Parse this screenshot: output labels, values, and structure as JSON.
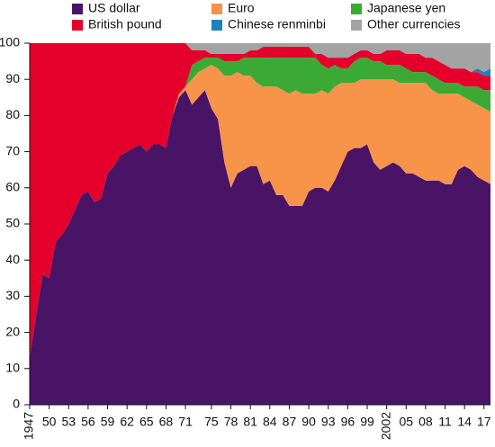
{
  "chart_data": {
    "type": "stacked_area",
    "x": [
      1947,
      1948,
      1949,
      1950,
      1951,
      1952,
      1953,
      1954,
      1955,
      1956,
      1957,
      1958,
      1959,
      1960,
      1961,
      1962,
      1963,
      1964,
      1965,
      1966,
      1967,
      1968,
      1969,
      1970,
      1971,
      1972,
      1973,
      1974,
      1975,
      1976,
      1977,
      1978,
      1979,
      1980,
      1981,
      1982,
      1983,
      1984,
      1985,
      1986,
      1987,
      1988,
      1989,
      1990,
      1991,
      1992,
      1993,
      1994,
      1995,
      1996,
      1997,
      1998,
      1999,
      2000,
      2001,
      2002,
      2003,
      2004,
      2005,
      2006,
      2007,
      2008,
      2009,
      2010,
      2011,
      2012,
      2013,
      2014,
      2015,
      2016,
      2017,
      2018
    ],
    "series": [
      {
        "name": "US dollar",
        "color": "#4a1466",
        "values": [
          13,
          25,
          36,
          35,
          45,
          47,
          50,
          54,
          58,
          59,
          56,
          57,
          64,
          66,
          69,
          70,
          71,
          72,
          70,
          72,
          72,
          71,
          80,
          85,
          87,
          83,
          85,
          87,
          82,
          79,
          67,
          60,
          64,
          65,
          66,
          66,
          61,
          62,
          58,
          58,
          55,
          55,
          55,
          59,
          60,
          60,
          59,
          62,
          66,
          70,
          71,
          71,
          72,
          67,
          65,
          66,
          67,
          66,
          64,
          64,
          63,
          62,
          62,
          62,
          61,
          61,
          65,
          66,
          65,
          63,
          62,
          61
        ]
      },
      {
        "name": "Euro",
        "color": "#f7944a",
        "values": [
          0,
          0,
          0,
          0,
          0,
          0,
          0,
          0,
          0,
          0,
          0,
          0,
          0,
          0,
          0,
          0,
          0,
          0,
          0,
          0,
          0,
          0,
          0,
          1,
          1,
          7,
          7,
          6,
          12,
          14,
          24,
          31,
          28,
          26,
          25,
          23,
          27,
          26,
          30,
          29,
          31,
          32,
          31,
          27,
          26,
          27,
          27,
          26,
          23,
          19,
          18,
          19,
          18,
          23,
          25,
          24,
          23,
          23,
          25,
          25,
          26,
          27,
          25,
          24,
          25,
          25,
          21,
          19,
          19,
          20,
          20,
          20
        ]
      },
      {
        "name": "Japanese yen",
        "color": "#3aaa35",
        "values": [
          0,
          0,
          0,
          0,
          0,
          0,
          0,
          0,
          0,
          0,
          0,
          0,
          0,
          0,
          0,
          0,
          0,
          0,
          0,
          0,
          0,
          0,
          0,
          0,
          0,
          4,
          3,
          3,
          2,
          3,
          4,
          4,
          3,
          5,
          5,
          7,
          8,
          8,
          8,
          9,
          10,
          9,
          10,
          10,
          10,
          7,
          7,
          6,
          4,
          4,
          6,
          6,
          6,
          5,
          5,
          4,
          4,
          5,
          4,
          3,
          3,
          3,
          4,
          4,
          3,
          3,
          3,
          3,
          4,
          5,
          5,
          6
        ]
      },
      {
        "name": "British pound",
        "color": "#e4002b",
        "values": [
          87,
          75,
          64,
          65,
          55,
          53,
          50,
          46,
          42,
          41,
          44,
          43,
          36,
          34,
          31,
          30,
          29,
          28,
          30,
          28,
          28,
          29,
          20,
          14,
          12,
          4,
          3,
          2,
          1,
          1,
          2,
          2,
          2,
          1,
          2,
          2,
          3,
          3,
          3,
          3,
          3,
          3,
          3,
          3,
          1,
          3,
          3,
          2,
          3,
          3,
          2,
          2,
          2,
          2,
          2,
          4,
          4,
          4,
          4,
          5,
          5,
          4,
          5,
          5,
          5,
          4,
          4,
          5,
          4,
          4,
          4,
          4
        ]
      },
      {
        "name": "Chinese renminbi",
        "color": "#1f7fbf",
        "values": [
          0,
          0,
          0,
          0,
          0,
          0,
          0,
          0,
          0,
          0,
          0,
          0,
          0,
          0,
          0,
          0,
          0,
          0,
          0,
          0,
          0,
          0,
          0,
          0,
          0,
          0,
          0,
          0,
          0,
          0,
          0,
          0,
          0,
          0,
          0,
          0,
          0,
          0,
          0,
          0,
          0,
          0,
          0,
          0,
          0,
          0,
          0,
          0,
          0,
          0,
          0,
          0,
          0,
          0,
          0,
          0,
          0,
          0,
          0,
          0,
          0,
          0,
          0,
          0,
          0,
          0,
          0,
          0,
          0,
          1,
          1,
          2
        ]
      },
      {
        "name": "Other currencies",
        "color": "#a3a3a3",
        "values": [
          0,
          0,
          0,
          0,
          0,
          0,
          0,
          0,
          0,
          0,
          0,
          0,
          0,
          0,
          0,
          0,
          0,
          0,
          0,
          0,
          0,
          0,
          0,
          0,
          0,
          2,
          2,
          2,
          3,
          3,
          3,
          3,
          3,
          3,
          2,
          2,
          1,
          1,
          1,
          1,
          1,
          1,
          1,
          1,
          3,
          3,
          4,
          4,
          4,
          4,
          3,
          2,
          2,
          3,
          3,
          2,
          2,
          2,
          3,
          3,
          3,
          4,
          4,
          5,
          6,
          7,
          7,
          7,
          8,
          7,
          8,
          7
        ]
      }
    ],
    "xlim": [
      1947,
      2018
    ],
    "xticks": [
      {
        "value": 1947,
        "label": "1947"
      },
      {
        "value": 1950,
        "label": "50"
      },
      {
        "value": 1953,
        "label": "53"
      },
      {
        "value": 1956,
        "label": "56"
      },
      {
        "value": 1959,
        "label": "59"
      },
      {
        "value": 1962,
        "label": "62"
      },
      {
        "value": 1965,
        "label": "65"
      },
      {
        "value": 1968,
        "label": "68"
      },
      {
        "value": 1971,
        "label": "71"
      },
      {
        "value": 1975,
        "label": "75"
      },
      {
        "value": 1978,
        "label": "78"
      },
      {
        "value": 1981,
        "label": "81"
      },
      {
        "value": 1984,
        "label": "84"
      },
      {
        "value": 1987,
        "label": "87"
      },
      {
        "value": 1990,
        "label": "90"
      },
      {
        "value": 1993,
        "label": "93"
      },
      {
        "value": 1996,
        "label": "96"
      },
      {
        "value": 1999,
        "label": "99"
      },
      {
        "value": 2002,
        "label": "2002"
      },
      {
        "value": 2005,
        "label": "05"
      },
      {
        "value": 2008,
        "label": "08"
      },
      {
        "value": 2011,
        "label": "11"
      },
      {
        "value": 2014,
        "label": "14"
      },
      {
        "value": 2017,
        "label": "17"
      }
    ],
    "ylim": [
      0,
      100
    ],
    "yticks": [
      0,
      10,
      20,
      30,
      40,
      50,
      60,
      70,
      80,
      90,
      100
    ]
  }
}
